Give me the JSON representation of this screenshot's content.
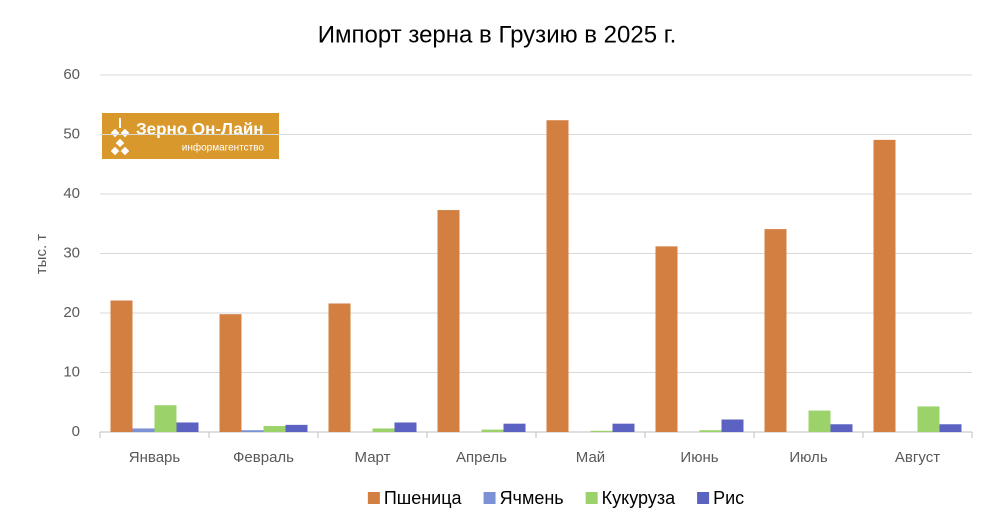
{
  "chart_data": {
    "type": "bar",
    "title": "Импорт зерна в Грузию в 2025 г.",
    "y_label": "тыс. т",
    "logo_title": "Зерно Он-Лайн",
    "logo_subtitle": "информагентство",
    "categories": [
      "Январь",
      "Февраль",
      "Март",
      "Апрель",
      "Май",
      "Июнь",
      "Июль",
      "Август"
    ],
    "series": [
      {
        "name": "Пшеница",
        "color": "#d37f42",
        "values": [
          22.1,
          19.8,
          21.6,
          37.3,
          52.4,
          31.2,
          34.1,
          49.1
        ]
      },
      {
        "name": "Ячмень",
        "color": "#7d92d6",
        "values": [
          0.6,
          0.3,
          0,
          0,
          0,
          0,
          0,
          0
        ]
      },
      {
        "name": "Кукуруза",
        "color": "#9bd36a",
        "values": [
          4.5,
          1.0,
          0.6,
          0.4,
          0.2,
          0.3,
          3.6,
          4.3
        ]
      },
      {
        "name": "Рис",
        "color": "#5b62c1",
        "values": [
          1.6,
          1.2,
          1.6,
          1.4,
          1.4,
          2.1,
          1.3,
          1.3
        ]
      }
    ],
    "ylim": [
      0,
      60
    ],
    "yticks": [
      0,
      10,
      20,
      30,
      40,
      50,
      60
    ],
    "grid": true,
    "legend": "bottom"
  }
}
